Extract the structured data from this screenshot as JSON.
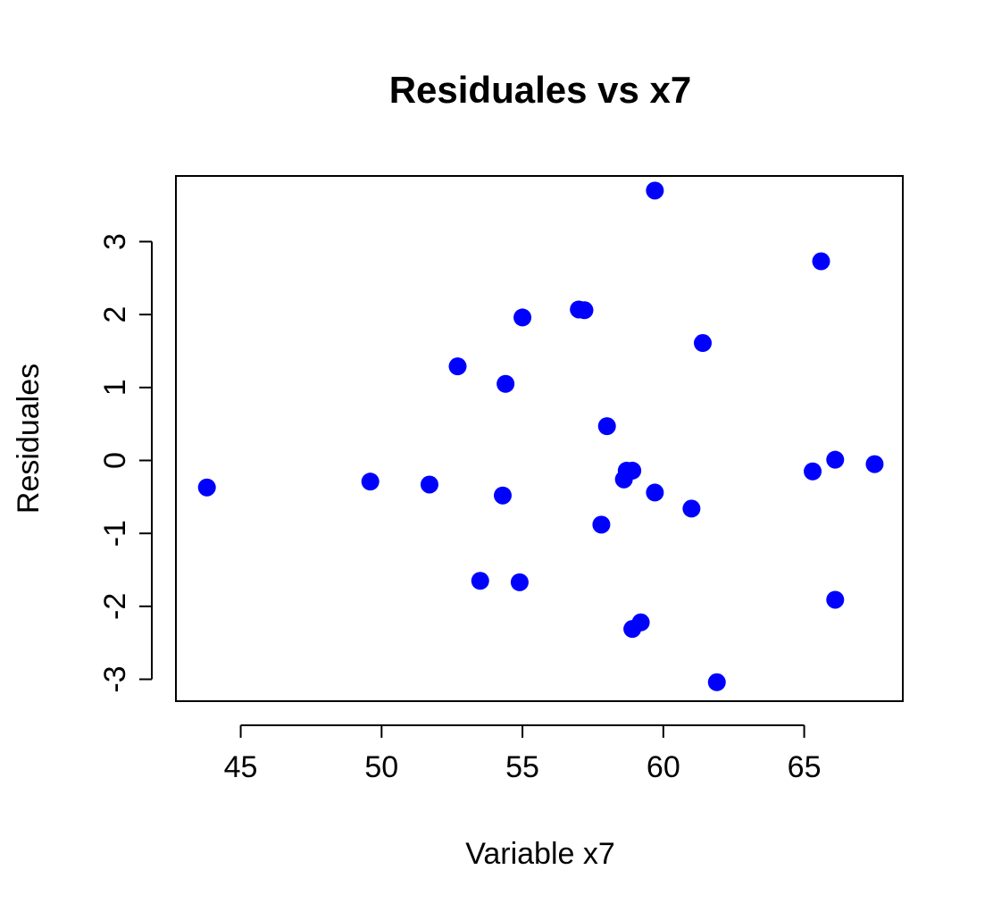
{
  "chart_data": {
    "type": "scatter",
    "title": "Residuales vs x7",
    "xlabel": "Variable x7",
    "ylabel": "Residuales",
    "xlim": [
      42.7,
      68.5
    ],
    "ylim": [
      -3.3,
      3.9
    ],
    "xticks": [
      45,
      50,
      55,
      60,
      65
    ],
    "yticks": [
      -3,
      -2,
      -1,
      0,
      1,
      2,
      3
    ],
    "grid": false,
    "legend": "none",
    "point_color": "#0000ff",
    "points": [
      {
        "x": 43.8,
        "y": -0.37
      },
      {
        "x": 49.6,
        "y": -0.29
      },
      {
        "x": 51.7,
        "y": -0.33
      },
      {
        "x": 52.7,
        "y": 1.29
      },
      {
        "x": 53.5,
        "y": -1.65
      },
      {
        "x": 54.3,
        "y": -0.48
      },
      {
        "x": 54.4,
        "y": 1.05
      },
      {
        "x": 54.9,
        "y": -1.67
      },
      {
        "x": 55.0,
        "y": 1.96
      },
      {
        "x": 57.0,
        "y": 2.07
      },
      {
        "x": 57.2,
        "y": 2.06
      },
      {
        "x": 57.8,
        "y": -0.88
      },
      {
        "x": 58.0,
        "y": 0.47
      },
      {
        "x": 58.6,
        "y": -0.26
      },
      {
        "x": 58.7,
        "y": -0.14
      },
      {
        "x": 58.9,
        "y": -0.14
      },
      {
        "x": 58.9,
        "y": -2.31
      },
      {
        "x": 59.2,
        "y": -2.22
      },
      {
        "x": 59.7,
        "y": -0.44
      },
      {
        "x": 59.7,
        "y": 3.7
      },
      {
        "x": 61.0,
        "y": -0.66
      },
      {
        "x": 61.4,
        "y": 1.61
      },
      {
        "x": 61.9,
        "y": -3.04
      },
      {
        "x": 65.3,
        "y": -0.15
      },
      {
        "x": 65.6,
        "y": 2.73
      },
      {
        "x": 66.1,
        "y": 0.01
      },
      {
        "x": 66.1,
        "y": -1.91
      },
      {
        "x": 67.5,
        "y": -0.05
      }
    ]
  }
}
